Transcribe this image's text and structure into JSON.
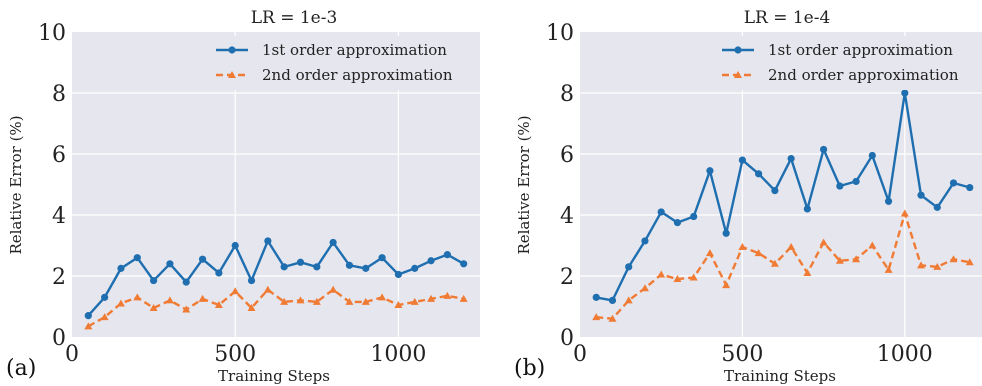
{
  "panels": [
    {
      "label": "(a)"
    },
    {
      "label": "(b)"
    }
  ],
  "chart_data": [
    {
      "type": "line",
      "title": "LR = 1e-3",
      "xlabel": "Training Steps",
      "ylabel": "Relative Error (%)",
      "xlim": [
        0,
        1250
      ],
      "ylim": [
        0,
        10
      ],
      "xticks": [
        0,
        500,
        1000
      ],
      "yticks": [
        0,
        2,
        4,
        6,
        8,
        10
      ],
      "grid": true,
      "legend": "top-right",
      "x": [
        50,
        100,
        150,
        200,
        250,
        300,
        350,
        400,
        450,
        500,
        550,
        600,
        650,
        700,
        750,
        800,
        850,
        900,
        950,
        1000,
        1050,
        1100,
        1150,
        1200
      ],
      "series": [
        {
          "name": "1st order approximation",
          "color": "#1f6fb0",
          "style": "solid",
          "marker": "circle",
          "values": [
            0.7,
            1.3,
            2.25,
            2.6,
            1.85,
            2.4,
            1.8,
            2.55,
            2.1,
            3.0,
            1.85,
            3.15,
            2.3,
            2.45,
            2.3,
            3.1,
            2.35,
            2.25,
            2.6,
            2.05,
            2.25,
            2.5,
            2.7,
            2.4
          ]
        },
        {
          "name": "2nd order approximation",
          "color": "#f07b34",
          "style": "dashed",
          "marker": "triangle",
          "values": [
            0.35,
            0.65,
            1.1,
            1.3,
            0.95,
            1.2,
            0.9,
            1.25,
            1.05,
            1.5,
            0.95,
            1.55,
            1.15,
            1.2,
            1.15,
            1.55,
            1.15,
            1.15,
            1.3,
            1.05,
            1.15,
            1.25,
            1.35,
            1.25
          ]
        }
      ]
    },
    {
      "type": "line",
      "title": "LR = 1e-4",
      "xlabel": "Training Steps",
      "ylabel": "Relative Error (%)",
      "xlim": [
        0,
        1250
      ],
      "ylim": [
        0,
        10
      ],
      "xticks": [
        0,
        500,
        1000
      ],
      "yticks": [
        0,
        2,
        4,
        6,
        8,
        10
      ],
      "grid": true,
      "legend": "top-right",
      "x": [
        50,
        100,
        150,
        200,
        250,
        300,
        350,
        400,
        450,
        500,
        550,
        600,
        650,
        700,
        750,
        800,
        850,
        900,
        950,
        1000,
        1050,
        1100,
        1150,
        1200
      ],
      "series": [
        {
          "name": "1st order approximation",
          "color": "#1f6fb0",
          "style": "solid",
          "marker": "circle",
          "values": [
            1.3,
            1.2,
            2.3,
            3.15,
            4.1,
            3.75,
            3.95,
            5.45,
            3.4,
            5.8,
            5.35,
            4.8,
            5.85,
            4.2,
            6.15,
            4.95,
            5.1,
            5.95,
            4.45,
            8.0,
            4.65,
            4.25,
            5.05,
            4.9
          ]
        },
        {
          "name": "2nd order approximation",
          "color": "#f07b34",
          "style": "dashed",
          "marker": "triangle",
          "values": [
            0.65,
            0.6,
            1.2,
            1.6,
            2.05,
            1.9,
            1.95,
            2.75,
            1.7,
            2.95,
            2.75,
            2.4,
            2.95,
            2.1,
            3.1,
            2.5,
            2.55,
            3.0,
            2.2,
            4.05,
            2.35,
            2.3,
            2.55,
            2.45
          ]
        }
      ]
    }
  ]
}
